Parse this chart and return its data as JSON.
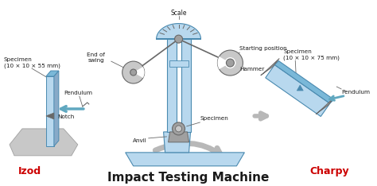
{
  "title": "Impact Testing Machine",
  "title_fontsize": 11,
  "title_fontweight": "bold",
  "background_color": "#ffffff",
  "fig_width": 4.74,
  "fig_height": 2.34,
  "dpi": 100,
  "colors": {
    "light_blue": "#b8d8ee",
    "mid_blue": "#7ab8d8",
    "dark_blue": "#4a8ab0",
    "steel_blue": "#88aac8",
    "light_gray": "#c8c8c8",
    "mid_gray": "#a0a0a0",
    "dark_gray": "#686868",
    "very_light_gray": "#dcdcdc",
    "red": "#cc0000",
    "black": "#1a1a1a",
    "white": "#ffffff",
    "arrow_gray": "#b8b8b8",
    "teal": "#60a8c0"
  },
  "labels": {
    "izod": "Izod",
    "charpy": "Charpy",
    "scale": "Scale",
    "starting_position": "Starting position",
    "hammer": "Hammer",
    "end_of_swing": "End of\nswing",
    "anvil": "Anvil",
    "specimen_center": "Specimen",
    "specimen_izod": "Specimen\n(10 × 10 × 55 mm)",
    "specimen_charpy": "Specimen\n(10 × 10 × 75 mm)",
    "pendulum_izod": "Pendulum",
    "pendulum_charpy": "Pendulum",
    "notch": "Notch"
  }
}
